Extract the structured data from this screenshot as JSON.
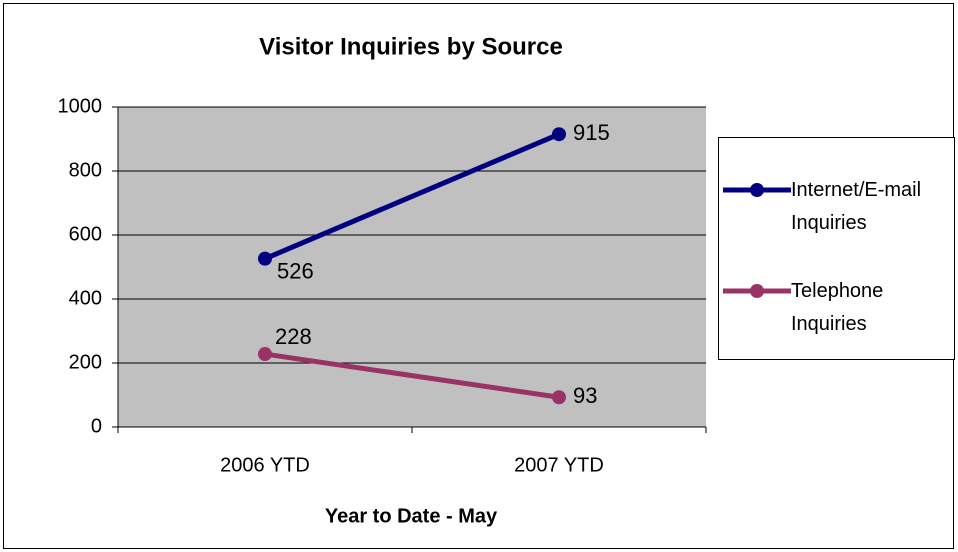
{
  "chart_data": {
    "type": "line",
    "title": "Visitor Inquiries by Source",
    "x_label": "Year to Date - May",
    "categories": [
      "2006 YTD",
      "2007 YTD"
    ],
    "series": [
      {
        "name": "Internet/E-mail Inquiries",
        "color": "#000080",
        "values": [
          526,
          915
        ]
      },
      {
        "name": "Telephone Inquiries",
        "color": "#993366",
        "values": [
          228,
          93
        ]
      }
    ],
    "ylim": [
      0,
      1000
    ],
    "yticks": [
      0,
      200,
      400,
      600,
      800,
      1000
    ],
    "grid": true,
    "legend": "right"
  }
}
